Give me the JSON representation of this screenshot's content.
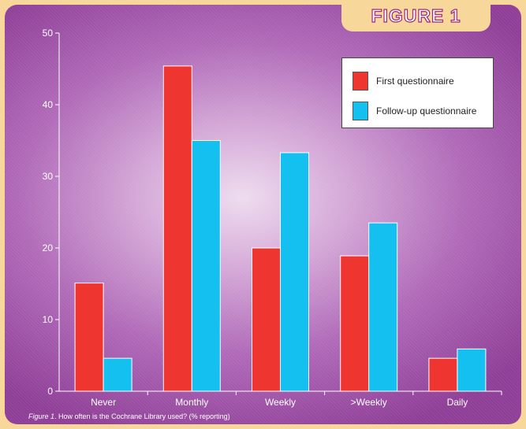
{
  "figure_label": "FIGURE 1",
  "caption": {
    "prefix": "Figure 1",
    "text": ". How often is the Cochrane Library used? (% reporting)"
  },
  "colors": {
    "first": "#ee3530",
    "followup": "#13c0ef",
    "background_frame": "#f7d89a",
    "panel": "#b06ab8"
  },
  "chart_data": {
    "type": "bar",
    "categories": [
      "Never",
      "Monthly",
      "Weekly",
      ">Weekly",
      "Daily"
    ],
    "series": [
      {
        "name": "First questionnaire",
        "values": [
          15.1,
          45.4,
          20.0,
          18.9,
          4.6
        ]
      },
      {
        "name": "Follow-up questionnaire",
        "values": [
          4.6,
          35.0,
          33.3,
          23.5,
          5.9
        ]
      }
    ],
    "ylim": [
      0,
      50
    ],
    "yticks": [
      0,
      10,
      20,
      30,
      40,
      50
    ],
    "xlabel": "",
    "ylabel": "",
    "grid": false,
    "legend_position": "top-right"
  }
}
